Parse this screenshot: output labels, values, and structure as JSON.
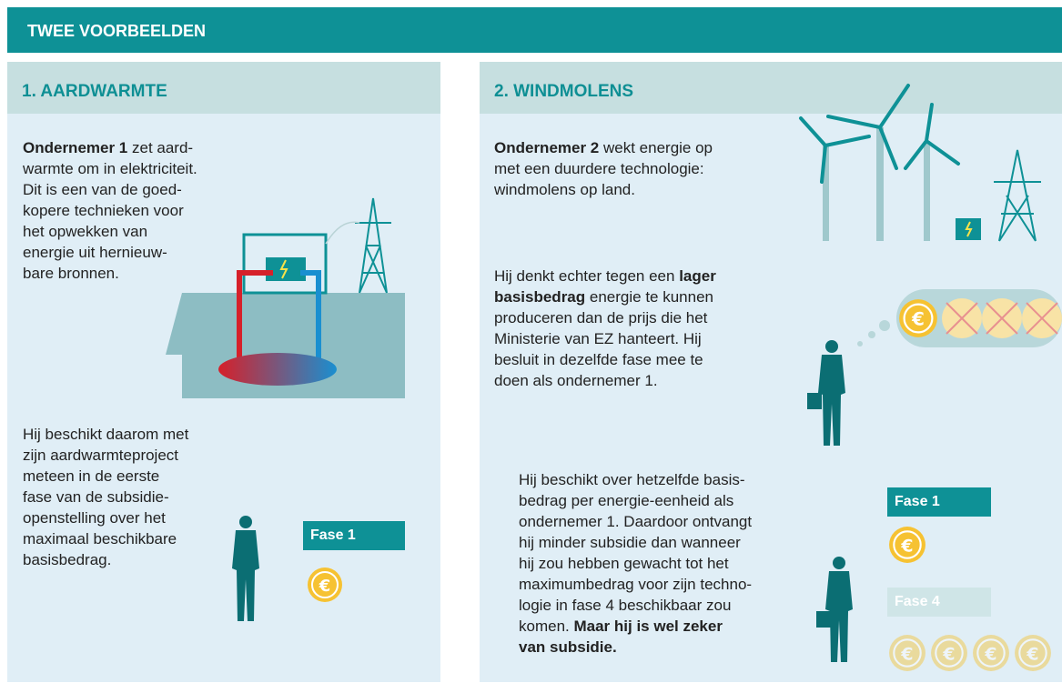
{
  "header": {
    "title": "TWEE VOORBEELDEN"
  },
  "panels": [
    {
      "title": "1. AARDWARMTE",
      "paragraphs": [
        [
          "Ondernemer 1",
          " zet aard-\nwarmte om in elektriciteit.\nDit is een van de goed-\nkopere technieken voor\nhet opwekken van\nenergie uit hernieuw-\nbare bronnen."
        ],
        [
          "Hij beschikt daarom met\nzijn aardwarmteproject\nmeteen in de eerste\nfase van de subsidie-\nopenstelling over het\nmaximaal beschikbare\nbasisbedrag."
        ]
      ],
      "phases": [
        "Fase 1"
      ]
    },
    {
      "title": "2. WINDMOLENS",
      "paragraphs": [
        [
          "Ondernemer 2",
          " wekt energie op\nmet een duurdere technologie:\nwindmolens op land."
        ],
        [
          "Hij denkt echter tegen een ",
          "lager\nbasisbedrag",
          " energie te kunnen\nproduceren dan de prijs die het\nMinisterie van EZ hanteert. Hij\nbesluit in dezelfde fase mee te\ndoen als ondernemer 1."
        ],
        [
          "Hij beschikt over hetzelfde basis-\nbedrag per energie-eenheid als\nondernemer 1. Daardoor ontvangt\nhij minder subsidie dan wanneer\nhij zou hebben gewacht tot het\nmaximumbedrag voor zijn techno-\nlogie in fase 4 beschikbaar zou\nkomen. ",
          "Maar hij is wel zeker\nvan subsidie."
        ]
      ],
      "phases": [
        "Fase 1",
        "Fase 4"
      ]
    }
  ]
}
